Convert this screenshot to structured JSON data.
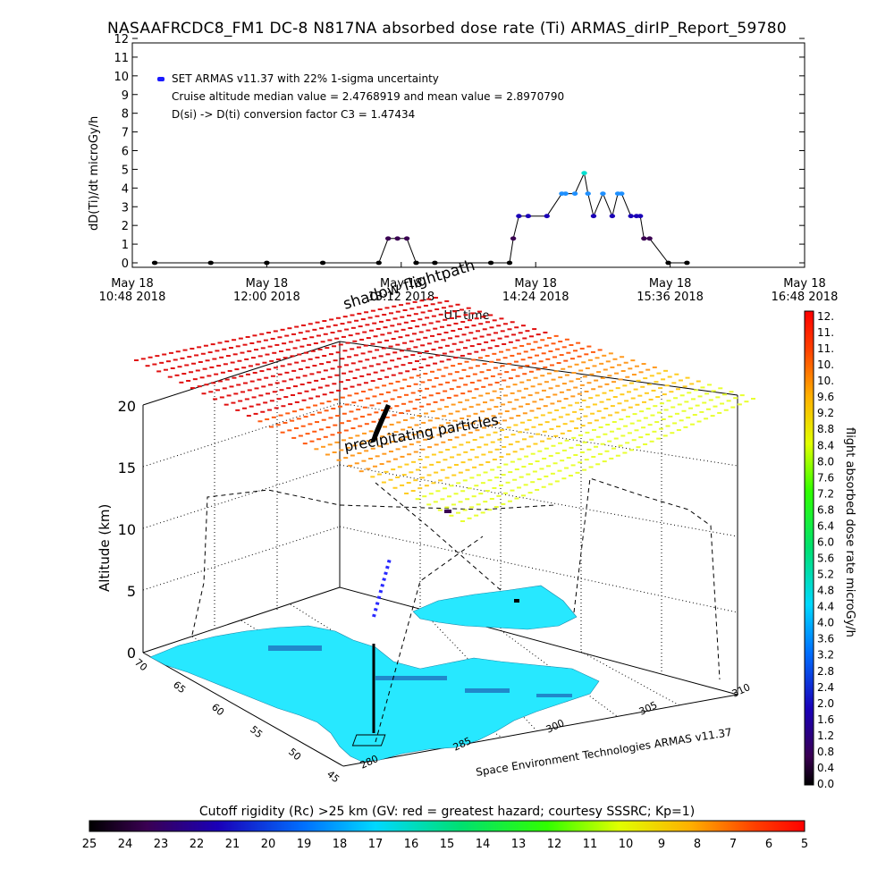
{
  "title": "NASAAFRCDC8_FM1 DC-8   N817NA absorbed dose rate (Ti) ARMAS_dirIP_Report_59780",
  "chart_data": [
    {
      "type": "line",
      "ylabel": "dD(Ti)/dt microGy/h",
      "xlabel": "UT time",
      "ylim": [
        0,
        12
      ],
      "yticks": [
        "0",
        "1",
        "2",
        "3",
        "4",
        "5",
        "6",
        "7",
        "8",
        "9",
        "10",
        "11",
        "12"
      ],
      "xticks": [
        {
          "date": "May 18",
          "time": "10:48 2018"
        },
        {
          "date": "May 18",
          "time": "12:00 2018"
        },
        {
          "date": "May 18",
          "time": "13:12 2018"
        },
        {
          "date": "May 18",
          "time": "14:24 2018"
        },
        {
          "date": "May 18",
          "time": "15:36 2018"
        },
        {
          "date": "May 18",
          "time": "16:48 2018"
        }
      ],
      "annotations": [
        "SET ARMAS v11.37 with 22% 1-sigma uncertainty",
        "Cruise altitude median value = 2.4768919 and mean value = 2.8970790",
        "D(si) -> D(ti) conversion factor C3 = 1.47434"
      ],
      "series": [
        {
          "x": [
            "11:00",
            "11:30",
            "12:00",
            "12:30",
            "13:00",
            "13:05",
            "13:10",
            "13:15",
            "13:20",
            "13:30",
            "14:00",
            "14:10",
            "14:12",
            "14:15",
            "14:20",
            "14:30",
            "14:38",
            "14:40",
            "14:45",
            "14:50",
            "14:52",
            "14:55",
            "15:00",
            "15:05",
            "15:08",
            "15:10",
            "15:15",
            "15:18",
            "15:20",
            "15:22",
            "15:25",
            "15:35",
            "15:45"
          ],
          "y": [
            0,
            0,
            0,
            0,
            0,
            1.3,
            1.3,
            1.3,
            0,
            0,
            0,
            0,
            1.3,
            2.5,
            2.5,
            2.5,
            3.7,
            3.7,
            3.7,
            4.8,
            3.7,
            2.5,
            3.7,
            2.5,
            3.7,
            3.7,
            2.5,
            2.5,
            2.5,
            1.3,
            1.3,
            0,
            0
          ]
        }
      ]
    },
    {
      "type": "scatter",
      "zlabel": "Altitude (km)",
      "zticks": [
        "0",
        "5",
        "10",
        "15",
        "20"
      ],
      "lat_ticks": [
        "70",
        "65",
        "60",
        "55",
        "50",
        "45"
      ],
      "lon_ticks": [
        "280",
        "285",
        "300",
        "305",
        "310"
      ],
      "labels": [
        "shadow flightpath",
        "precipitating particles"
      ],
      "credit": "Space Environment Technologies ARMAS v11.37",
      "colorbar_label": "flight absorbed dose rate microGy/h",
      "colorbar_ticks": [
        "12.",
        "11.",
        "11.",
        "10.",
        "10.",
        "9.6",
        "9.2",
        "8.8",
        "8.4",
        "8.0",
        "7.6",
        "7.2",
        "6.8",
        "6.4",
        "6.0",
        "5.6",
        "5.2",
        "4.8",
        "4.4",
        "4.0",
        "3.6",
        "3.2",
        "2.8",
        "2.4",
        "2.0",
        "1.6",
        "1.2",
        "0.8",
        "0.4",
        "0.0"
      ]
    },
    {
      "type": "heatmap",
      "title": "Cutoff rigidity (Rc) >25 km (GV: red = greatest hazard; courtesy SSSRC; Kp=1)",
      "ticks": [
        "25",
        "24",
        "23",
        "22",
        "21",
        "20",
        "19",
        "18",
        "17",
        "16",
        "15",
        "14",
        "13",
        "12",
        "11",
        "10",
        "9",
        "8",
        "7",
        "6",
        "5"
      ]
    }
  ]
}
